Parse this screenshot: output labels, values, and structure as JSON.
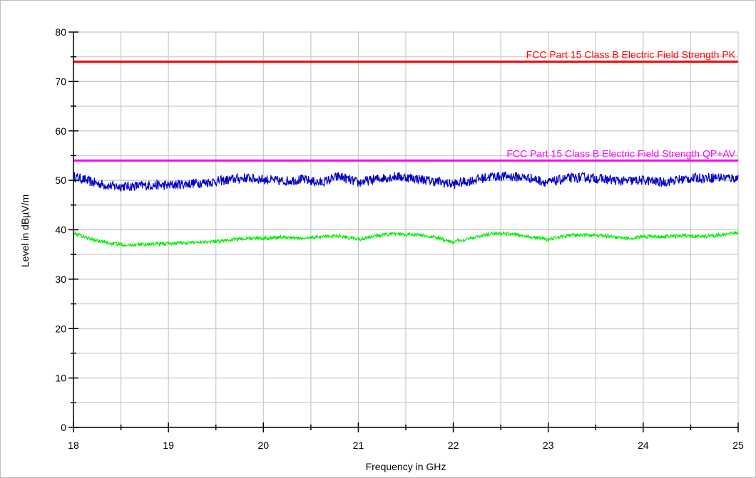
{
  "chart_data": {
    "type": "line",
    "title": "",
    "xlabel": "Frequency in GHz",
    "ylabel": "Level in dBµV/m",
    "xlim": [
      18,
      25
    ],
    "ylim": [
      0,
      80
    ],
    "x_ticks": [
      18,
      19,
      20,
      21,
      22,
      23,
      24,
      25
    ],
    "x_tick_labels": [
      "18",
      "19",
      "20",
      "21",
      "22",
      "23",
      "24",
      "25"
    ],
    "y_ticks": [
      0,
      10,
      20,
      30,
      40,
      50,
      60,
      70,
      80
    ],
    "y_tick_labels": [
      "0",
      "10",
      "20",
      "30",
      "40",
      "50",
      "60",
      "70",
      "80"
    ],
    "grid": true,
    "limit_lines": [
      {
        "name": "FCC Part 15 Class B Electric Field Strength PK",
        "value": 74,
        "color": "#ff0000"
      },
      {
        "name": "FCC Part 15 Class B Electric Field Strength QP+AV",
        "value": 54,
        "color": "#ff00ff"
      }
    ],
    "series": [
      {
        "color": "#0000cc",
        "noise": 1.0,
        "x": [
          18.0,
          18.2,
          18.4,
          18.6,
          18.8,
          19.0,
          19.2,
          19.4,
          19.6,
          19.8,
          20.0,
          20.2,
          20.4,
          20.6,
          20.8,
          21.0,
          21.2,
          21.4,
          21.6,
          21.8,
          22.0,
          22.2,
          22.4,
          22.6,
          22.8,
          23.0,
          23.2,
          23.4,
          23.6,
          23.8,
          24.0,
          24.2,
          24.4,
          24.6,
          24.8,
          25.0
        ],
        "values": [
          50.8,
          49.6,
          48.8,
          48.8,
          49.0,
          49.0,
          49.3,
          49.6,
          50.0,
          50.5,
          50.2,
          49.8,
          50.2,
          49.5,
          50.8,
          49.5,
          50.3,
          50.8,
          50.4,
          49.8,
          49.2,
          50.0,
          50.8,
          50.8,
          50.5,
          49.5,
          50.4,
          50.6,
          50.2,
          49.8,
          50.0,
          49.6,
          50.2,
          50.5,
          50.6,
          50.4
        ]
      },
      {
        "color": "#00ee00",
        "noise": 0.35,
        "x": [
          18.0,
          18.2,
          18.4,
          18.6,
          18.8,
          19.0,
          19.2,
          19.4,
          19.6,
          19.8,
          20.0,
          20.2,
          20.4,
          20.6,
          20.8,
          21.0,
          21.2,
          21.4,
          21.6,
          21.8,
          22.0,
          22.2,
          22.4,
          22.6,
          22.8,
          23.0,
          23.2,
          23.4,
          23.6,
          23.8,
          24.0,
          24.2,
          24.4,
          24.6,
          24.8,
          25.0
        ],
        "values": [
          39.4,
          38.0,
          37.2,
          36.9,
          37.1,
          37.2,
          37.4,
          37.6,
          37.8,
          38.2,
          38.3,
          38.5,
          38.2,
          38.6,
          38.8,
          38.0,
          38.8,
          39.2,
          39.0,
          38.5,
          37.5,
          38.4,
          39.2,
          39.2,
          38.6,
          38.0,
          38.8,
          39.0,
          38.8,
          38.2,
          38.6,
          38.6,
          38.8,
          38.6,
          38.9,
          39.4
        ]
      }
    ]
  }
}
